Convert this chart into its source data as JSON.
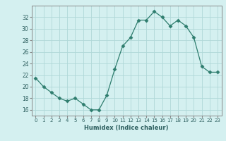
{
  "x": [
    0,
    1,
    2,
    3,
    4,
    5,
    6,
    7,
    8,
    9,
    10,
    11,
    12,
    13,
    14,
    15,
    16,
    17,
    18,
    19,
    20,
    21,
    22,
    23
  ],
  "y": [
    21.5,
    20.0,
    19.0,
    18.0,
    17.5,
    18.0,
    17.0,
    16.0,
    16.0,
    18.5,
    23.0,
    27.0,
    28.5,
    31.5,
    31.5,
    33.0,
    32.0,
    30.5,
    31.5,
    30.5,
    28.5,
    23.5,
    22.5,
    22.5
  ],
  "line_color": "#2e7d6e",
  "marker": "D",
  "marker_size": 2.5,
  "bg_color": "#d4f0f0",
  "grid_color": "#b0d8d8",
  "xlabel": "Humidex (Indice chaleur)",
  "ylim": [
    15,
    34
  ],
  "xlim": [
    -0.5,
    23.5
  ],
  "yticks": [
    16,
    18,
    20,
    22,
    24,
    26,
    28,
    30,
    32
  ],
  "xticks": [
    0,
    1,
    2,
    3,
    4,
    5,
    6,
    7,
    8,
    9,
    10,
    11,
    12,
    13,
    14,
    15,
    16,
    17,
    18,
    19,
    20,
    21,
    22,
    23
  ]
}
